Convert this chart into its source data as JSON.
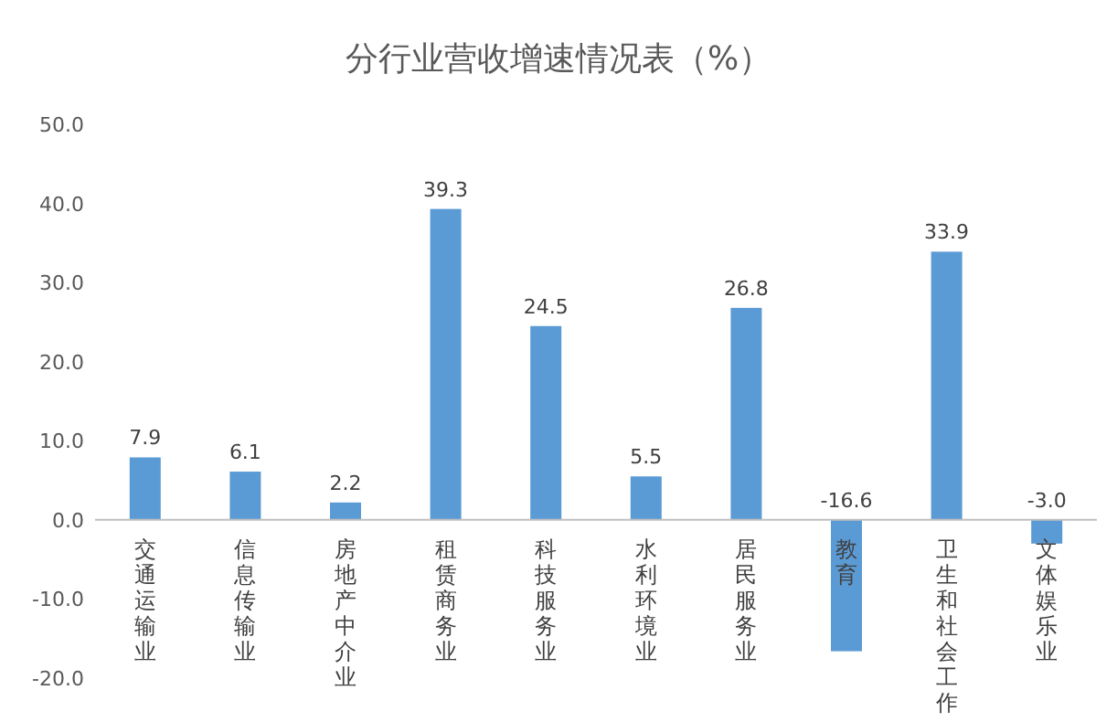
{
  "chart_data": {
    "type": "bar",
    "title": "分行业营收增速情况表（%）",
    "categories": [
      "交通运输业",
      "信息传输业",
      "房地产中介业",
      "租赁商务业",
      "科技服务业",
      "水利环境业",
      "居民服务业",
      "教育",
      "卫生和社会工作",
      "文体娱乐业"
    ],
    "values": [
      7.9,
      6.1,
      2.2,
      39.3,
      24.5,
      5.5,
      26.8,
      -16.6,
      33.9,
      -3.0
    ],
    "value_labels": [
      "7.9",
      "6.1",
      "2.2",
      "39.3",
      "24.5",
      "5.5",
      "26.8",
      "-16.6",
      "33.9",
      "-3.0"
    ],
    "color": "#5b9bd5",
    "ylim": [
      -20,
      50
    ],
    "yticks": [
      {
        "value": -20,
        "label": "-20.0"
      },
      {
        "value": -10,
        "label": "-10.0"
      },
      {
        "value": 0,
        "label": "0.0"
      },
      {
        "value": 10,
        "label": "10.0"
      },
      {
        "value": 20,
        "label": "20.0"
      },
      {
        "value": 30,
        "label": "30.0"
      },
      {
        "value": 40,
        "label": "40.0"
      },
      {
        "value": 50,
        "label": "50.0"
      }
    ]
  }
}
